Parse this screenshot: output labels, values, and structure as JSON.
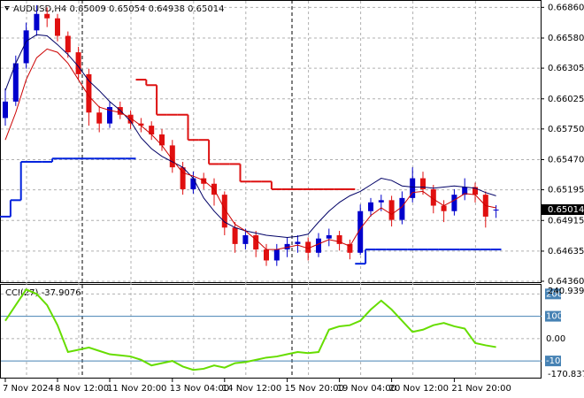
{
  "chart_data": {
    "type": "candlestick",
    "title": "AUDUSD,H4",
    "categories": [
      "7 Nov 2024",
      null,
      null,
      null,
      null,
      "8 Nov 12:00",
      null,
      null,
      null,
      null,
      "11 Nov 20:00",
      null,
      null,
      null,
      null,
      null,
      "13 Nov 04:00",
      null,
      null,
      null,
      null,
      "14 Nov 12:00",
      null,
      null,
      null,
      null,
      null,
      "15 Nov 20:00",
      null,
      null,
      null,
      null,
      "19 Nov 04:00",
      null,
      null,
      null,
      null,
      "20 Nov 12:00",
      null,
      null,
      null,
      null,
      null,
      "21 Nov 20:00",
      null,
      null,
      null,
      null
    ],
    "candles": [
      [
        0.6585,
        0.6612,
        0.6578,
        0.66
      ],
      [
        0.66,
        0.6642,
        0.6596,
        0.6635
      ],
      [
        0.6635,
        0.6672,
        0.663,
        0.6665
      ],
      [
        0.6665,
        0.6688,
        0.666,
        0.668
      ],
      [
        0.668,
        0.6686,
        0.6668,
        0.6676
      ],
      [
        0.6676,
        0.668,
        0.6655,
        0.666
      ],
      [
        0.666,
        0.6664,
        0.664,
        0.6645
      ],
      [
        0.6645,
        0.665,
        0.662,
        0.6625
      ],
      [
        0.6625,
        0.663,
        0.6578,
        0.659
      ],
      [
        0.659,
        0.6596,
        0.6572,
        0.658
      ],
      [
        0.658,
        0.66,
        0.6576,
        0.6595
      ],
      [
        0.6595,
        0.66,
        0.6584,
        0.6588
      ],
      [
        0.6588,
        0.6592,
        0.6575,
        0.658
      ],
      [
        0.658,
        0.6585,
        0.6572,
        0.6578
      ],
      [
        0.6578,
        0.6582,
        0.6565,
        0.657
      ],
      [
        0.657,
        0.6575,
        0.6555,
        0.656
      ],
      [
        0.656,
        0.6565,
        0.6535,
        0.654
      ],
      [
        0.654,
        0.6545,
        0.6515,
        0.652
      ],
      [
        0.652,
        0.6536,
        0.6516,
        0.653
      ],
      [
        0.653,
        0.6535,
        0.652,
        0.6525
      ],
      [
        0.6525,
        0.653,
        0.6505,
        0.6515
      ],
      [
        0.6515,
        0.6518,
        0.6478,
        0.6485
      ],
      [
        0.6485,
        0.649,
        0.6462,
        0.647
      ],
      [
        0.647,
        0.6484,
        0.6465,
        0.6478
      ],
      [
        0.6478,
        0.6482,
        0.6458,
        0.6465
      ],
      [
        0.6465,
        0.647,
        0.645,
        0.6455
      ],
      [
        0.6455,
        0.647,
        0.645,
        0.6465
      ],
      [
        0.6465,
        0.6476,
        0.6458,
        0.647
      ],
      [
        0.647,
        0.6478,
        0.6462,
        0.6472
      ],
      [
        0.6472,
        0.6476,
        0.6455,
        0.6462
      ],
      [
        0.6462,
        0.648,
        0.6458,
        0.6475
      ],
      [
        0.6475,
        0.6484,
        0.6468,
        0.6478
      ],
      [
        0.6478,
        0.6482,
        0.6464,
        0.647
      ],
      [
        0.647,
        0.6474,
        0.6456,
        0.6462
      ],
      [
        0.6462,
        0.6506,
        0.646,
        0.65
      ],
      [
        0.65,
        0.6512,
        0.6495,
        0.6508
      ],
      [
        0.6508,
        0.6515,
        0.65,
        0.651
      ],
      [
        0.651,
        0.6514,
        0.6486,
        0.6492
      ],
      [
        0.6492,
        0.6518,
        0.6488,
        0.6512
      ],
      [
        0.6512,
        0.654,
        0.6508,
        0.653
      ],
      [
        0.653,
        0.6536,
        0.6515,
        0.652
      ],
      [
        0.652,
        0.6524,
        0.6498,
        0.6505
      ],
      [
        0.6505,
        0.651,
        0.649,
        0.65
      ],
      [
        0.65,
        0.652,
        0.6496,
        0.6515
      ],
      [
        0.6515,
        0.653,
        0.651,
        0.6522
      ],
      [
        0.6522,
        0.6526,
        0.6508,
        0.6515
      ],
      [
        0.6515,
        0.6518,
        0.6485,
        0.6495
      ],
      [
        0.65009,
        0.65054,
        0.64938,
        0.65014
      ]
    ],
    "up_color": "#0000cc",
    "down_color": "#e01010",
    "series": [
      {
        "color": "#000066",
        "values": [
          0.661,
          0.6635,
          0.6655,
          0.6661,
          0.666,
          0.6652,
          0.6643,
          0.6632,
          0.6619,
          0.661,
          0.66,
          0.6592,
          0.6582,
          0.6567,
          0.6557,
          0.655,
          0.6545,
          0.654,
          0.653,
          0.6512,
          0.65,
          0.649,
          0.6485,
          0.6482,
          0.648,
          0.6478,
          0.6477,
          0.6476,
          0.6477,
          0.6479,
          0.649,
          0.65,
          0.6508,
          0.6514,
          0.6518,
          0.6524,
          0.653,
          0.6528,
          0.6523,
          0.6522,
          0.6522,
          0.6521,
          0.6522,
          0.6523,
          0.6522,
          0.6521,
          0.6517,
          0.6514
        ]
      },
      {
        "color": "#cc0000",
        "values": [
          0.6565,
          0.659,
          0.662,
          0.664,
          0.6648,
          0.6645,
          0.6635,
          0.662,
          0.6605,
          0.6595,
          0.6592,
          0.659,
          0.6585,
          0.6578,
          0.657,
          0.656,
          0.6547,
          0.6535,
          0.6532,
          0.6528,
          0.652,
          0.6502,
          0.6488,
          0.6482,
          0.6474,
          0.6465,
          0.6465,
          0.6467,
          0.6469,
          0.6466,
          0.647,
          0.6474,
          0.6472,
          0.6468,
          0.6484,
          0.6496,
          0.6503,
          0.6497,
          0.6504,
          0.6517,
          0.6518,
          0.6511,
          0.6505,
          0.651,
          0.6516,
          0.6515,
          0.6505,
          0.6503
        ]
      },
      {
        "color": "#0022dd",
        "step": true,
        "values": [
          0.6495,
          0.651,
          0.6545,
          0.6545,
          0.6545,
          0.6548,
          0.6548,
          0.6548,
          0.6548,
          0.6548,
          0.6548,
          0.6548,
          0.6548,
          null,
          null,
          null,
          null,
          null,
          null,
          null,
          null,
          null,
          null,
          null,
          null,
          null,
          null,
          null,
          null,
          null,
          null,
          null,
          null,
          null,
          0.6452,
          0.6465,
          0.6465,
          0.6465,
          0.6465,
          0.6465,
          0.6465,
          0.6465,
          0.6465,
          0.6465,
          0.6465,
          0.6465,
          0.6465,
          0.6465
        ]
      },
      {
        "color": "#dd1111",
        "step": true,
        "values": [
          null,
          null,
          null,
          null,
          null,
          null,
          null,
          null,
          null,
          null,
          null,
          null,
          null,
          0.662,
          0.6615,
          0.6588,
          0.6588,
          0.6588,
          0.6565,
          0.6565,
          0.6543,
          0.6543,
          0.6543,
          0.6527,
          0.6527,
          0.6527,
          0.652,
          0.652,
          0.652,
          0.652,
          0.652,
          0.652,
          0.652,
          0.652,
          null,
          null,
          null,
          null,
          null,
          null,
          null,
          null,
          null,
          null,
          null,
          null,
          null,
          null
        ]
      }
    ],
    "ylim": [
      0.6436,
      0.66903
    ],
    "yticks": [
      {
        "value": 0.6686,
        "label": "0.66860"
      },
      {
        "value": 0.6658,
        "label": "0.66580"
      },
      {
        "value": 0.66305,
        "label": "0.66305"
      },
      {
        "value": 0.66025,
        "label": "0.66025"
      },
      {
        "value": 0.6575,
        "label": "0.65750"
      },
      {
        "value": 0.6547,
        "label": "0.65470"
      },
      {
        "value": 0.65195,
        "label": "0.65195"
      },
      {
        "value": 0.64915,
        "label": "0.64915"
      },
      {
        "value": 0.64635,
        "label": "0.64635"
      },
      {
        "value": 0.6436,
        "label": "0.64360"
      }
    ],
    "grid": true,
    "cci": {
      "title": "CCI(27)",
      "color": "#66dd00",
      "values": [
        80,
        150,
        220,
        200,
        150,
        60,
        -60,
        -50,
        -40,
        -55,
        -70,
        -75,
        -80,
        -95,
        -120,
        -110,
        -100,
        -125,
        -140,
        -135,
        -120,
        -130,
        -110,
        -105,
        -95,
        -85,
        -80,
        -70,
        -60,
        -65,
        -60,
        40,
        55,
        60,
        80,
        130,
        170,
        130,
        80,
        30,
        40,
        60,
        70,
        55,
        45,
        -20,
        -30,
        -37.9076
      ],
      "ylim": [
        -170.8371,
        240.9392
      ],
      "yticks": [
        200,
        100,
        {
          "value": 0,
          "label": "0.00"
        },
        -100
      ],
      "levels": [
        100,
        -100
      ]
    }
  }
}
